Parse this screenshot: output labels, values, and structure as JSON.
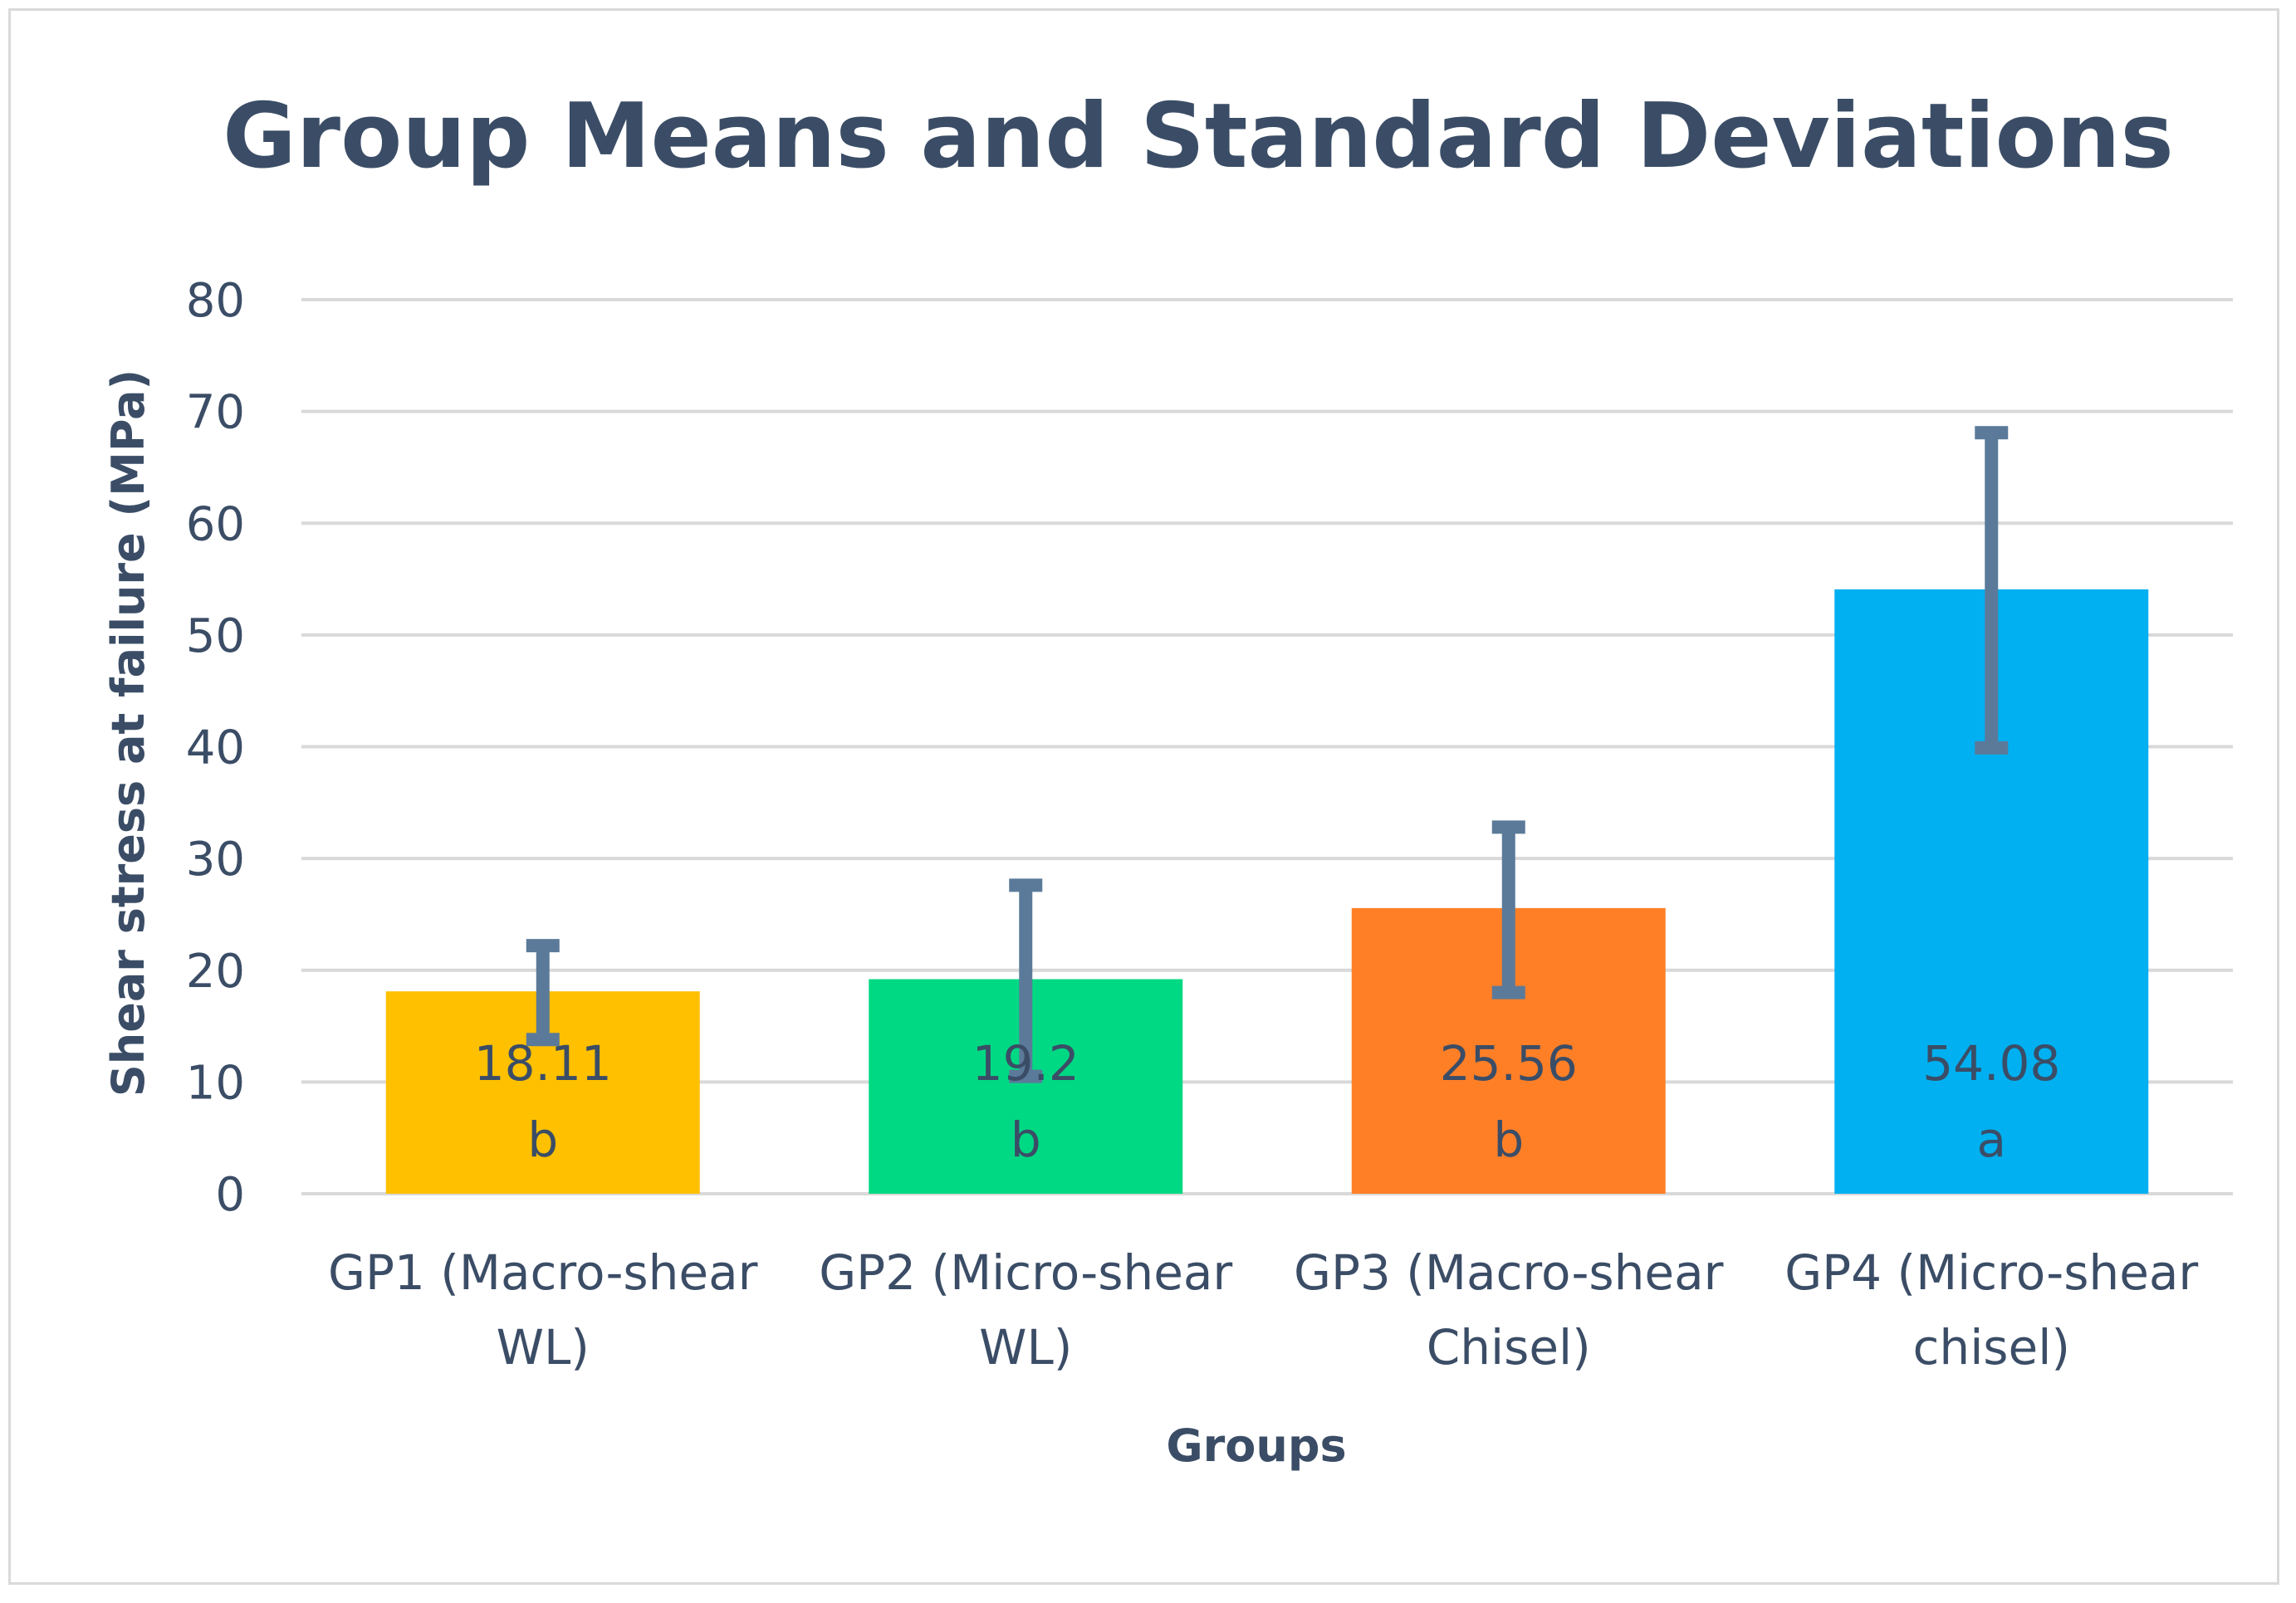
{
  "chart_data": {
    "type": "bar",
    "title": "Group Means and Standard Deviations",
    "xlabel": "Groups",
    "ylabel": "Shear stress at failure (MPa)",
    "ylim": [
      0,
      80
    ],
    "yticks": [
      0,
      10,
      20,
      30,
      40,
      50,
      60,
      70,
      80
    ],
    "grid": true,
    "categories": [
      [
        "GP1 (Macro-shear",
        "WL)"
      ],
      [
        "GP2 (Micro-shear",
        "WL)"
      ],
      [
        "GP3 (Macro-shear",
        "Chisel)"
      ],
      [
        "GP4 (Micro-shear",
        "chisel)"
      ]
    ],
    "values": [
      18.11,
      19.2,
      25.56,
      54.08
    ],
    "value_labels": [
      "18.11",
      "19.2",
      "25.56",
      "54.08"
    ],
    "letters": [
      "b",
      "b",
      "b",
      "a"
    ],
    "error_low": [
      13.8,
      10.5,
      18.0,
      39.9
    ],
    "error_high": [
      22.2,
      27.6,
      32.8,
      68.1
    ],
    "colors": [
      "#ffc000",
      "#00d983",
      "#ff7f27",
      "#00b0f0"
    ],
    "error_color": "#5b7a9a",
    "text_color": "#3b4d66",
    "grid_color": "#d9d9d9"
  }
}
